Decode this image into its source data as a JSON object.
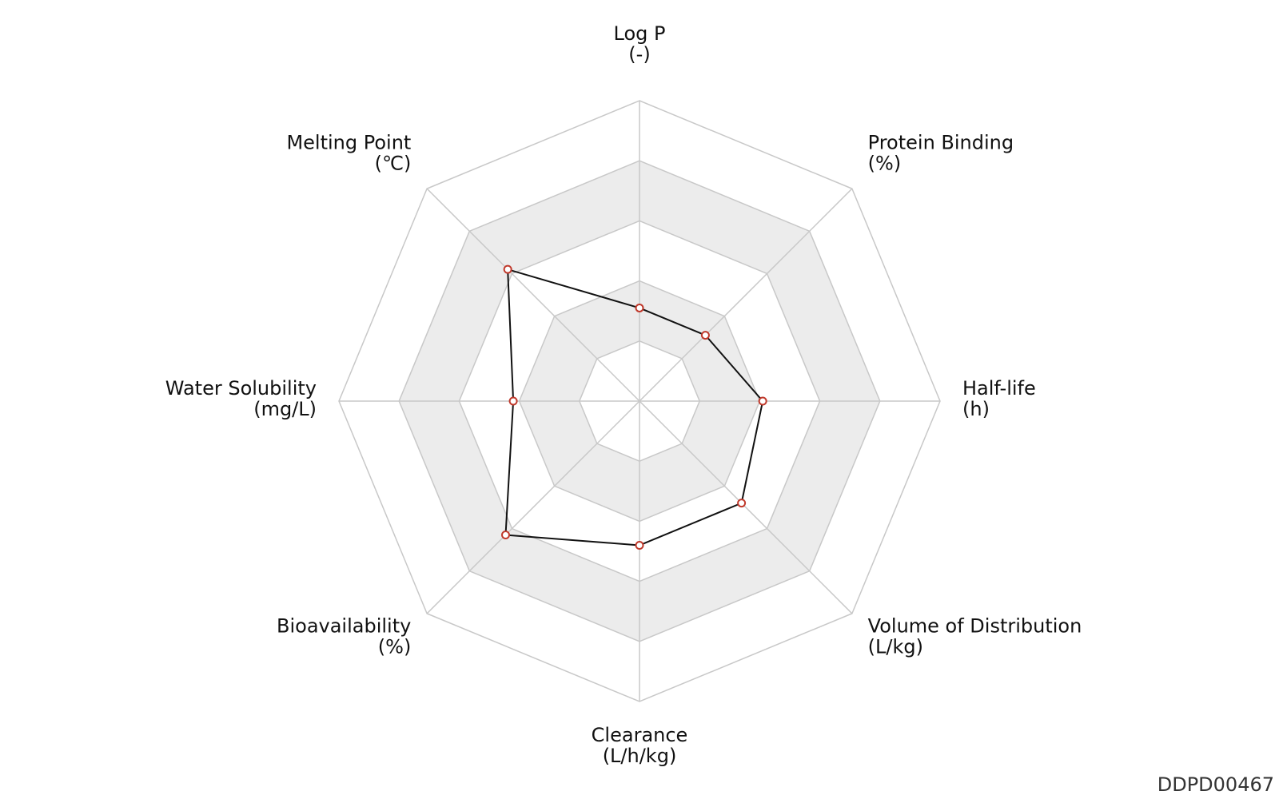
{
  "chart_data": {
    "type": "radar",
    "axes": [
      {
        "label": "Log P",
        "unit": "(-)"
      },
      {
        "label": "Protein Binding",
        "unit": "(%)"
      },
      {
        "label": "Half-life",
        "unit": "(h)"
      },
      {
        "label": "Volume of Distribution",
        "unit": "(L/kg)"
      },
      {
        "label": "Clearance",
        "unit": "(L/h/kg)"
      },
      {
        "label": "Bioavailability",
        "unit": "(%)"
      },
      {
        "label": "Water Solubility",
        "unit": "(mg/L)"
      },
      {
        "label": "Melting Point",
        "unit": "(℃)"
      }
    ],
    "values": [
      0.31,
      0.31,
      0.41,
      0.48,
      0.48,
      0.63,
      0.42,
      0.62
    ],
    "rings": 5,
    "range": [
      0,
      1
    ],
    "line_color": "#111111",
    "marker_edge_color": "#c0392b",
    "marker_fill_color": "#ffffff",
    "band_colors": [
      "#ffffff",
      "#ececec"
    ],
    "grid_color": "#c8c8c8"
  },
  "watermark": "DDPD00467"
}
